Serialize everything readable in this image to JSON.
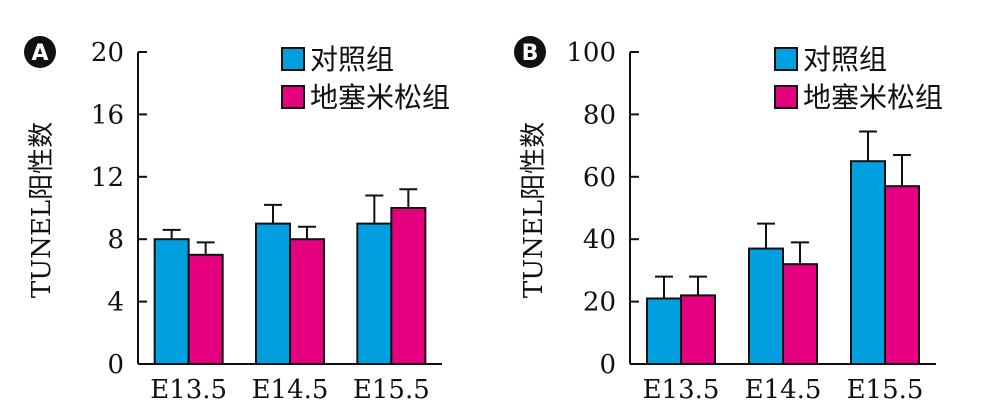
{
  "chart_data": [
    {
      "panel": "A",
      "type": "bar",
      "categories": [
        "E13.5",
        "E14.5",
        "E15.5"
      ],
      "series": [
        {
          "name": "对照组",
          "color": "#00a0e0",
          "values": [
            8,
            9,
            9
          ],
          "errors": [
            0.6,
            1.2,
            1.8
          ]
        },
        {
          "name": "地塞米松组",
          "color": "#e4007f",
          "values": [
            7,
            8,
            10
          ],
          "errors": [
            0.8,
            0.8,
            1.2
          ]
        }
      ],
      "ylabel": "TUNEL阳性数",
      "ylim": [
        0,
        20
      ],
      "yticks": [
        "0",
        "4",
        "8",
        "12",
        "16",
        "20"
      ],
      "legend": "top-right",
      "grid": false
    },
    {
      "panel": "B",
      "type": "bar",
      "categories": [
        "E13.5",
        "E14.5",
        "E15.5"
      ],
      "series": [
        {
          "name": "对照组",
          "color": "#00a0e0",
          "values": [
            21,
            37,
            65
          ],
          "errors": [
            7,
            8,
            9.5
          ]
        },
        {
          "name": "地塞米松组",
          "color": "#e4007f",
          "values": [
            22,
            32,
            57
          ],
          "errors": [
            6,
            7,
            10
          ]
        }
      ],
      "ylabel": "TUNEL阳性数",
      "ylim": [
        0,
        100
      ],
      "yticks": [
        "0",
        "20",
        "40",
        "60",
        "80",
        "100"
      ],
      "legend": "top-right",
      "grid": false
    }
  ]
}
